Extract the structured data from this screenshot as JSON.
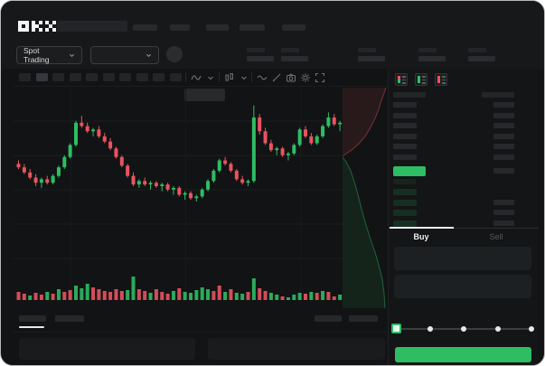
{
  "brand": {
    "name": "OKX"
  },
  "colors": {
    "green": "#2ebd63",
    "red": "#e8545f",
    "bid_row": "rgba(46,189,99,0.16)"
  },
  "trading_controls": {
    "mode_label": "Spot Trading"
  },
  "orderbook": {
    "ask_row_count": 6,
    "bid_row_count": 4,
    "tabs": {
      "buy": "Buy",
      "sell": "Sell"
    }
  },
  "chart_data": [
    {
      "type": "candlestick",
      "title": "",
      "xlabel": "",
      "ylabel": "",
      "note": "No numeric axis labels are visible in the screenshot; candle values are relative units 0-100 read from pixel positions.",
      "ylim": [
        26,
        100
      ],
      "grid": true,
      "candles": [
        [
          63,
          65,
          60,
          61
        ],
        [
          61,
          63,
          57,
          58
        ],
        [
          58,
          60,
          54,
          55
        ],
        [
          55,
          57,
          50,
          52
        ],
        [
          52,
          55,
          49,
          54
        ],
        [
          54,
          56,
          51,
          52
        ],
        [
          52,
          57,
          51,
          56
        ],
        [
          56,
          62,
          55,
          61
        ],
        [
          61,
          68,
          60,
          67
        ],
        [
          67,
          75,
          66,
          74
        ],
        [
          74,
          88,
          73,
          87
        ],
        [
          87,
          91,
          84,
          85
        ],
        [
          85,
          87,
          81,
          82
        ],
        [
          82,
          84,
          79,
          83
        ],
        [
          83,
          85,
          78,
          79
        ],
        [
          79,
          81,
          75,
          76
        ],
        [
          76,
          78,
          71,
          72
        ],
        [
          72,
          73,
          66,
          67
        ],
        [
          67,
          68,
          61,
          62
        ],
        [
          62,
          63,
          55,
          56
        ],
        [
          56,
          58,
          50,
          51
        ],
        [
          51,
          54,
          49,
          53
        ],
        [
          53,
          55,
          50,
          51
        ],
        [
          51,
          53,
          48,
          52
        ],
        [
          52,
          53,
          49,
          50
        ],
        [
          50,
          52,
          47,
          51
        ],
        [
          51,
          52,
          47,
          48
        ],
        [
          48,
          50,
          45,
          49
        ],
        [
          49,
          50,
          44,
          45
        ],
        [
          45,
          47,
          42,
          46
        ],
        [
          46,
          47,
          42,
          43
        ],
        [
          43,
          45,
          41,
          44
        ],
        [
          44,
          49,
          43,
          48
        ],
        [
          48,
          54,
          47,
          53
        ],
        [
          53,
          60,
          52,
          59
        ],
        [
          59,
          66,
          58,
          65
        ],
        [
          65,
          67,
          62,
          63
        ],
        [
          63,
          64,
          58,
          59
        ],
        [
          59,
          60,
          53,
          54
        ],
        [
          54,
          56,
          51,
          52
        ],
        [
          52,
          54,
          50,
          53
        ],
        [
          53,
          97,
          52,
          90
        ],
        [
          90,
          92,
          80,
          82
        ],
        [
          82,
          84,
          74,
          75
        ],
        [
          75,
          77,
          70,
          71
        ],
        [
          71,
          73,
          68,
          72
        ],
        [
          72,
          73,
          67,
          68
        ],
        [
          68,
          70,
          65,
          69
        ],
        [
          69,
          75,
          68,
          74
        ],
        [
          74,
          84,
          73,
          83
        ],
        [
          83,
          85,
          78,
          79
        ],
        [
          79,
          81,
          74,
          75
        ],
        [
          75,
          80,
          74,
          79
        ],
        [
          79,
          86,
          78,
          85
        ],
        [
          85,
          93,
          84,
          90
        ],
        [
          90,
          92,
          85,
          86
        ],
        [
          86,
          88,
          82,
          87
        ]
      ],
      "volume": {
        "values": [
          9,
          7,
          5,
          8,
          6,
          9,
          7,
          12,
          9,
          11,
          16,
          13,
          18,
          14,
          12,
          10,
          9,
          12,
          10,
          11,
          26,
          12,
          10,
          8,
          12,
          9,
          7,
          10,
          13,
          9,
          8,
          11,
          14,
          12,
          10,
          16,
          9,
          12,
          8,
          7,
          9,
          24,
          13,
          10,
          8,
          6,
          4,
          3,
          6,
          8,
          7,
          9,
          8,
          10,
          9,
          4,
          6
        ],
        "colors": [
          "r",
          "r",
          "g",
          "r",
          "r",
          "g",
          "r",
          "g",
          "r",
          "r",
          "g",
          "g",
          "g",
          "r",
          "r",
          "r",
          "r",
          "r",
          "r",
          "g",
          "g",
          "r",
          "r",
          "g",
          "r",
          "r",
          "r",
          "g",
          "r",
          "g",
          "g",
          "g",
          "g",
          "g",
          "r",
          "r",
          "g",
          "r",
          "g",
          "g",
          "r",
          "g",
          "r",
          "r",
          "g",
          "g",
          "r",
          "g",
          "g",
          "g",
          "r",
          "g",
          "r",
          "g",
          "r",
          "r",
          "g"
        ]
      }
    },
    {
      "type": "area",
      "title": "vertical market depth",
      "note": "Cumulative ask depth (top, red) and bid depth (bottom, green); coordinates are local pixels of the 50x244 strip.",
      "asks_curve": [
        [
          48,
          0
        ],
        [
          46,
          6
        ],
        [
          43,
          14
        ],
        [
          40,
          24
        ],
        [
          36,
          34
        ],
        [
          31,
          44
        ],
        [
          25,
          54
        ],
        [
          18,
          62
        ],
        [
          10,
          69
        ],
        [
          4,
          73
        ],
        [
          0,
          76
        ]
      ],
      "bids_curve": [
        [
          0,
          77
        ],
        [
          4,
          82
        ],
        [
          9,
          92
        ],
        [
          13,
          104
        ],
        [
          17,
          118
        ],
        [
          21,
          134
        ],
        [
          26,
          152
        ],
        [
          31,
          168
        ],
        [
          36,
          182
        ],
        [
          40,
          196
        ],
        [
          44,
          212
        ],
        [
          46,
          228
        ],
        [
          47,
          244
        ]
      ]
    }
  ]
}
